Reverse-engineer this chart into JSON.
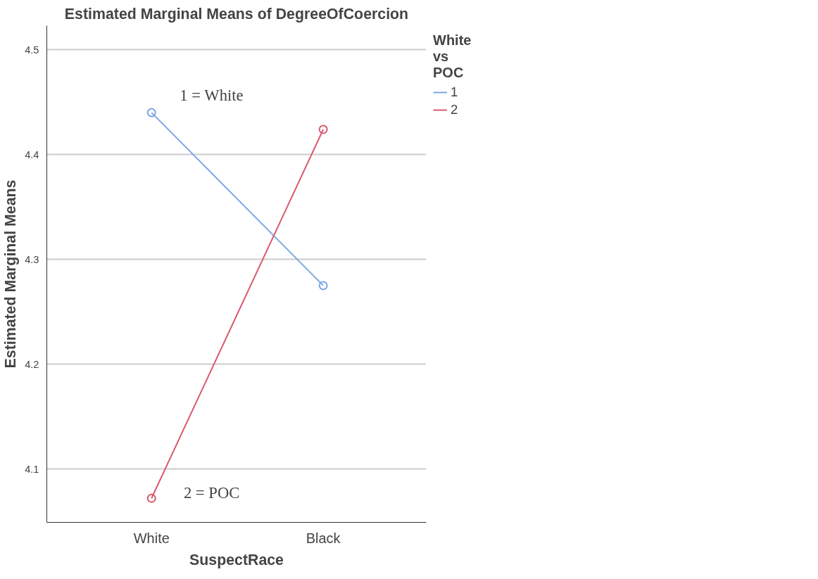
{
  "chart_data": {
    "type": "line",
    "title": "Estimated Marginal Means of DegreeOfCoercion",
    "xlabel": "SuspectRace",
    "ylabel": "Estimated Marginal Means",
    "legend_title": "White vs POC",
    "categories": [
      "White",
      "Black"
    ],
    "series": [
      {
        "name": "1",
        "color": "#7ba7e6",
        "values": [
          4.44,
          4.275
        ]
      },
      {
        "name": "2",
        "color": "#d9596f",
        "values": [
          4.072,
          4.424
        ]
      }
    ],
    "ylim": [
      4.049,
      4.523
    ],
    "yticks": [
      4.1,
      4.2,
      4.3,
      4.4,
      4.5
    ],
    "grid": "y",
    "legend": "top right",
    "marker": "circle",
    "line_style": "solid",
    "annotations": [
      "1 = White",
      "2 = POC"
    ]
  }
}
